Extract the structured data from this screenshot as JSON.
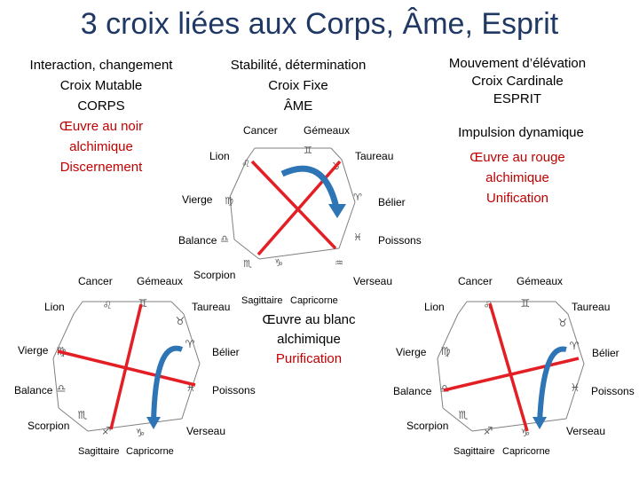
{
  "title": "3 croix liées aux Corps, Âme, Esprit",
  "corps": {
    "line1": "Interaction, changement",
    "line2": "Croix Mutable",
    "line3": "CORPS",
    "line4": "Œuvre au noir",
    "line5": "alchimique",
    "line6": "Discernement"
  },
  "ame": {
    "line1": "Stabilité, détermination",
    "line2": "Croix Fixe",
    "line3": "ÂME"
  },
  "esprit": {
    "line1": "Mouvement d’élévation",
    "line2": "Croix Cardinale",
    "line3": "ESPRIT",
    "line4": "Impulsion dynamique",
    "line5": "Œuvre au rouge",
    "line6": "alchimique",
    "line7": "Unification"
  },
  "blanc": {
    "line1": "Œuvre au blanc",
    "line2": "alchimique",
    "line3": "Purification"
  },
  "signs": {
    "cancer": "Cancer",
    "gemeaux": "Gémeaux",
    "taureau": "Taureau",
    "belier": "Bélier",
    "poissons": "Poissons",
    "verseau": "Verseau",
    "capricorne": "Capricorne",
    "sagittaire": "Sagittaire",
    "scorpion": "Scorpion",
    "balance": "Balance",
    "vierge": "Vierge",
    "lion": "Lion"
  },
  "colors": {
    "title": "#1f3864",
    "red_text": "#c00000",
    "cross": "#e31e24",
    "arrow": "#2e75b6",
    "wheel": "#7f7f7f"
  }
}
